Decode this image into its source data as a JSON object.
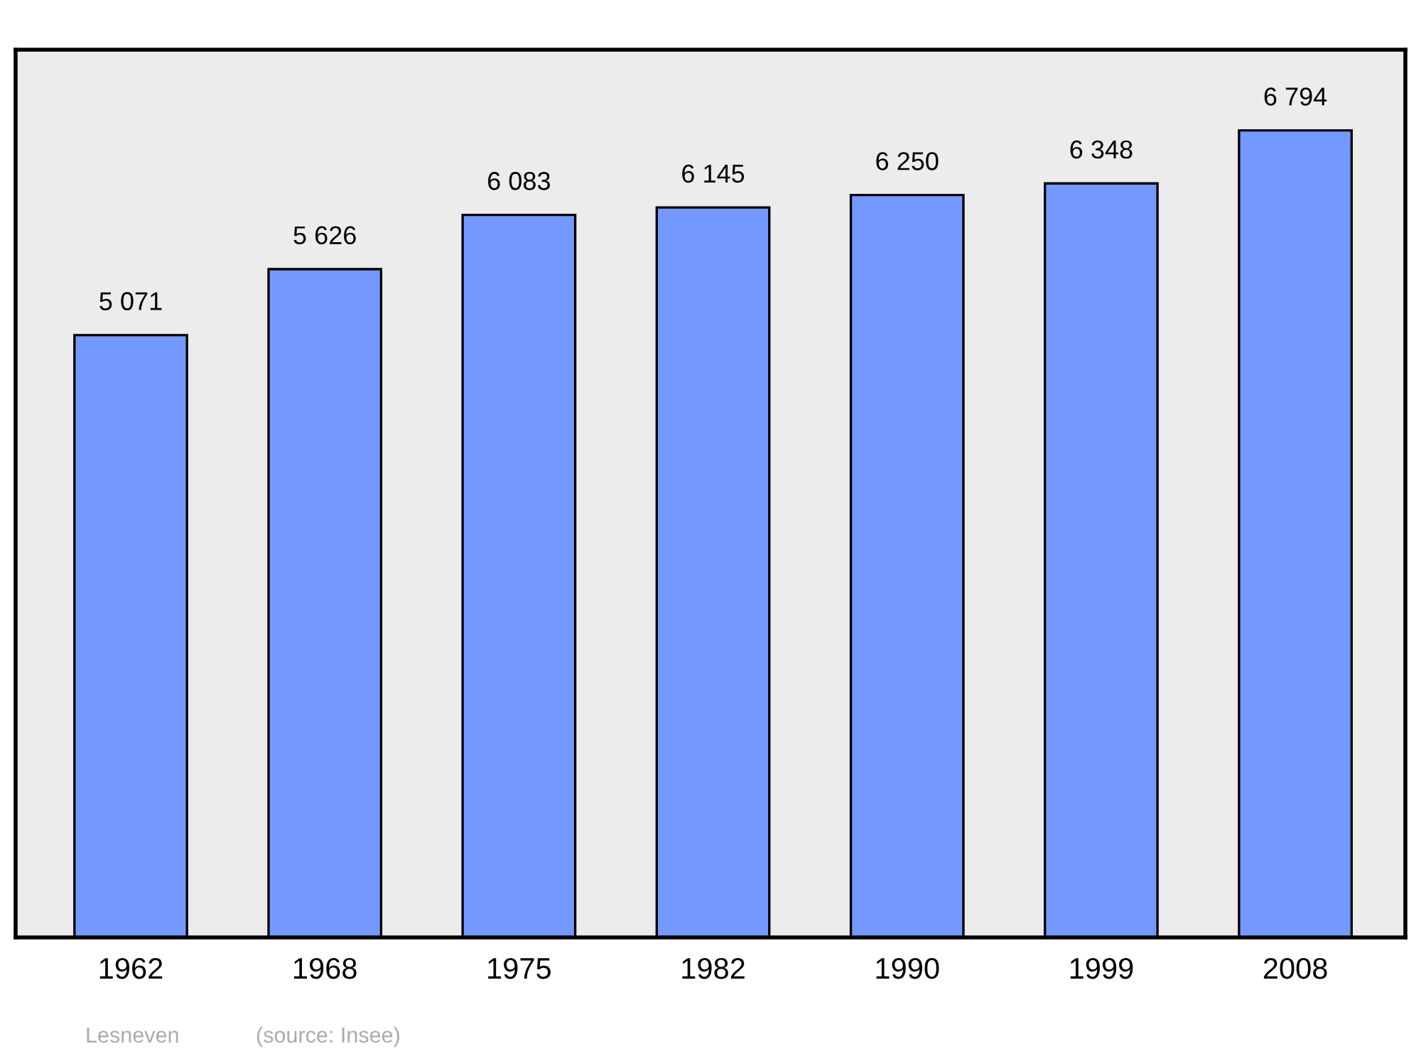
{
  "chart_data": {
    "type": "bar",
    "categories": [
      "1962",
      "1968",
      "1975",
      "1982",
      "1990",
      "1999",
      "2008"
    ],
    "values": [
      5071,
      5626,
      6083,
      6145,
      6250,
      6348,
      6794
    ],
    "value_labels": [
      "5 071",
      "5 626",
      "6 083",
      "6 145",
      "6 250",
      "6 348",
      "6 794"
    ],
    "color": "#7399ff",
    "grid": false,
    "legend": false,
    "annotations": [
      "Lesneven",
      "(source: Insee)"
    ]
  }
}
